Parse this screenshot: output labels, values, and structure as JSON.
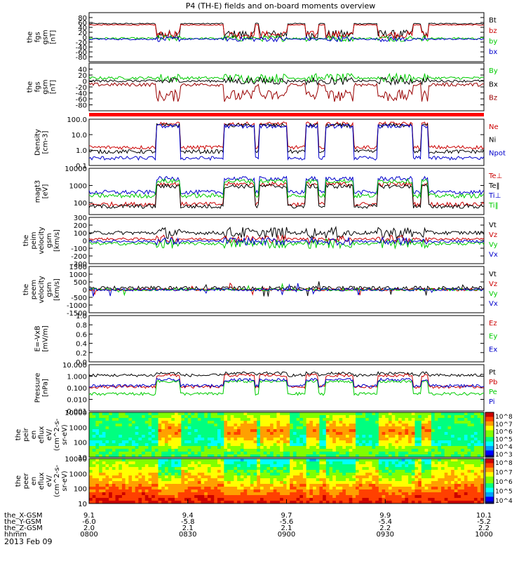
{
  "title": "P4 (TH-E) fields and on-board moments overview",
  "date": "2013 Feb 09",
  "colors": {
    "black": "#000000",
    "red": "#cc0000",
    "green": "#00cc00",
    "blue": "#0000cc",
    "darkred": "#990000"
  },
  "chart_data": [
    {
      "type": "line",
      "id": "fgs_a",
      "ylabel": [
        "the",
        "fgs",
        "gsm",
        "[nT]"
      ],
      "ylim": [
        -100,
        100
      ],
      "ticks": [
        -80,
        -60,
        -40,
        -20,
        0,
        20,
        40,
        60,
        80
      ],
      "legend": [
        {
          "name": "Bt",
          "color": "#000000"
        },
        {
          "name": "bz",
          "color": "#cc0000"
        },
        {
          "name": "by",
          "color": "#00cc00"
        },
        {
          "name": "bx",
          "color": "#0000cc"
        }
      ],
      "series": [
        {
          "color": "#000000",
          "base": 55,
          "amp": 12,
          "shape": "plateau"
        },
        {
          "color": "#cc0000",
          "base": 50,
          "amp": 10,
          "shape": "plateau"
        },
        {
          "color": "#00cc00",
          "base": -5,
          "amp": 10,
          "shape": "noise"
        },
        {
          "color": "#0000cc",
          "base": -8,
          "amp": 8,
          "shape": "noise"
        }
      ]
    },
    {
      "type": "line",
      "id": "fgs_b",
      "ylabel": [
        "the",
        "fgs",
        "gsm",
        "[nT]"
      ],
      "ylim": [
        -100,
        60
      ],
      "ticks": [
        -80,
        -60,
        -40,
        -20,
        0,
        20,
        40
      ],
      "legend": [
        {
          "name": "By",
          "color": "#00cc00"
        },
        {
          "name": "Bx",
          "color": "#000000"
        },
        {
          "name": "Bz",
          "color": "#990000"
        }
      ],
      "series": [
        {
          "color": "#00cc00",
          "base": 10,
          "amp": 12,
          "shape": "noise"
        },
        {
          "color": "#000000",
          "base": 0,
          "amp": 10,
          "shape": "noise"
        },
        {
          "color": "#990000",
          "base": -30,
          "amp": 20,
          "shape": "dips"
        }
      ]
    },
    {
      "type": "log",
      "id": "density",
      "ylabel": [
        "Density",
        "[cm-3]"
      ],
      "ylim": [
        0.1,
        100
      ],
      "ticks": [
        "0.1",
        "1.0",
        "10.0",
        "100.0"
      ],
      "legend": [
        {
          "name": "Ne",
          "color": "#cc0000"
        },
        {
          "name": "Ni",
          "color": "#000000"
        },
        {
          "name": "Npot",
          "color": "#0000cc"
        }
      ],
      "series": [
        {
          "color": "#cc0000",
          "hi": 50,
          "lo": 1.5
        },
        {
          "color": "#000000",
          "hi": 40,
          "lo": 0.8
        },
        {
          "color": "#0000cc",
          "hi": 35,
          "lo": 0.3
        }
      ]
    },
    {
      "type": "log",
      "id": "temps",
      "ylabel": [
        "magt3",
        "[eV]"
      ],
      "ylim": [
        20,
        10000
      ],
      "ticks": [
        "100",
        "1000",
        "10000"
      ],
      "legend": [
        {
          "name": "Te⊥",
          "color": "#cc0000"
        },
        {
          "name": "Te‖",
          "color": "#000000"
        },
        {
          "name": "Ti⊥",
          "color": "#0000cc"
        },
        {
          "name": "Ti‖",
          "color": "#00cc00"
        }
      ],
      "series": [
        {
          "color": "#cc0000",
          "hi": 1200,
          "lo": 80
        },
        {
          "color": "#000000",
          "hi": 900,
          "lo": 60
        },
        {
          "color": "#0000cc",
          "hi": 2500,
          "lo": 400
        },
        {
          "color": "#00cc00",
          "hi": 1800,
          "lo": 250
        }
      ]
    },
    {
      "type": "line",
      "id": "peim",
      "ylabel": [
        "the",
        "peim",
        "velocity",
        "gsm",
        "[km/s]"
      ],
      "ylim": [
        -300,
        300
      ],
      "ticks": [
        -300,
        -200,
        -100,
        0,
        100,
        200,
        300
      ],
      "legend": [
        {
          "name": "Vt",
          "color": "#000000"
        },
        {
          "name": "Vz",
          "color": "#cc0000"
        },
        {
          "name": "Vy",
          "color": "#00cc00"
        },
        {
          "name": "Vx",
          "color": "#0000cc"
        }
      ],
      "series": [
        {
          "color": "#000000",
          "base": 100,
          "amp": 60,
          "shape": "noise"
        },
        {
          "color": "#cc0000",
          "base": 20,
          "amp": 40,
          "shape": "noise"
        },
        {
          "color": "#00cc00",
          "base": -40,
          "amp": 50,
          "shape": "noise"
        },
        {
          "color": "#0000cc",
          "base": -10,
          "amp": 40,
          "shape": "noise"
        }
      ]
    },
    {
      "type": "line",
      "id": "peem",
      "ylabel": [
        "the",
        "peem",
        "velocity",
        "gsm",
        "[km/s]"
      ],
      "ylim": [
        -1500,
        1500
      ],
      "ticks": [
        -1500,
        -1000,
        -500,
        0,
        500,
        1000,
        1500
      ],
      "legend": [
        {
          "name": "Vt",
          "color": "#000000"
        },
        {
          "name": "Vz",
          "color": "#cc0000"
        },
        {
          "name": "Vy",
          "color": "#00cc00"
        },
        {
          "name": "Vx",
          "color": "#0000cc"
        }
      ],
      "series": [
        {
          "color": "#000000",
          "base": 100,
          "amp": 120,
          "shape": "spiky"
        },
        {
          "color": "#cc0000",
          "base": 0,
          "amp": 80,
          "shape": "spiky"
        },
        {
          "color": "#00cc00",
          "base": 0,
          "amp": 80,
          "shape": "spiky"
        },
        {
          "color": "#0000cc",
          "base": 0,
          "amp": 90,
          "shape": "spiky"
        }
      ]
    },
    {
      "type": "empty",
      "id": "efield",
      "ylabel": [
        "E=-VxB",
        "[mV/m]"
      ],
      "ylim": [
        0,
        1
      ],
      "ticks": [
        "0.0",
        "0.2",
        "0.4",
        "0.6",
        "0.8",
        "1.0"
      ],
      "legend": [
        {
          "name": "Ez",
          "color": "#cc0000"
        },
        {
          "name": "Ey",
          "color": "#00cc00"
        },
        {
          "name": "Ex",
          "color": "#0000cc"
        }
      ],
      "series": []
    },
    {
      "type": "log",
      "id": "pressure",
      "ylabel": [
        "Pressure",
        "[nPa]"
      ],
      "ylim": [
        0.001,
        10
      ],
      "ticks": [
        "0.001",
        "0.010",
        "0.100",
        "1.000",
        "10.000"
      ],
      "legend": [
        {
          "name": "Pt",
          "color": "#000000"
        },
        {
          "name": "Pb",
          "color": "#cc0000"
        },
        {
          "name": "Pe",
          "color": "#00cc00"
        },
        {
          "name": "Pi",
          "color": "#0000cc"
        }
      ],
      "series": [
        {
          "color": "#000000",
          "hi": 1.8,
          "lo": 1.2
        },
        {
          "color": "#cc0000",
          "hi": 1.2,
          "lo": 0.12
        },
        {
          "color": "#00cc00",
          "hi": 0.35,
          "lo": 0.03
        },
        {
          "color": "#0000cc",
          "hi": 0.5,
          "lo": 0.15
        }
      ]
    },
    {
      "type": "heatmap",
      "id": "peir",
      "ylabel": [
        "the",
        "peir",
        "en",
        "eflux",
        "eV/",
        "(cm^2-s-",
        "sr-eV)"
      ],
      "ylim": [
        10,
        10000
      ],
      "ticks": [
        "10",
        "100",
        "1000",
        "10000"
      ],
      "colorbar": [
        "10^8",
        "10^7",
        "10^6",
        "10^5",
        "10^4",
        "10^3"
      ]
    },
    {
      "type": "heatmap",
      "id": "peer",
      "ylabel": [
        "the",
        "peer",
        "en",
        "eflux",
        "eV/",
        "(cm^2-s-",
        "sr-eV)"
      ],
      "ylim": [
        10,
        10000
      ],
      "ticks": [
        "10",
        "100",
        "1000",
        "10000"
      ],
      "colorbar": [
        "10^8",
        "10^7",
        "10^6",
        "10^5",
        "10^4"
      ]
    }
  ],
  "xaxis": {
    "rows": [
      {
        "label": "the_X-GSM",
        "values": [
          "9.1",
          "9.4",
          "9.7",
          "9.9",
          "10.1"
        ]
      },
      {
        "label": "the_Y-GSM",
        "values": [
          "-6.0",
          "-5.8",
          "-5.6",
          "-5.4",
          "-5.2"
        ]
      },
      {
        "label": "the_Z-GSM",
        "values": [
          "2.0",
          "2.1",
          "2.1",
          "2.2",
          "2.2"
        ]
      },
      {
        "label": "hhmm",
        "values": [
          "0800",
          "0830",
          "0900",
          "0930",
          "1000"
        ]
      }
    ]
  }
}
